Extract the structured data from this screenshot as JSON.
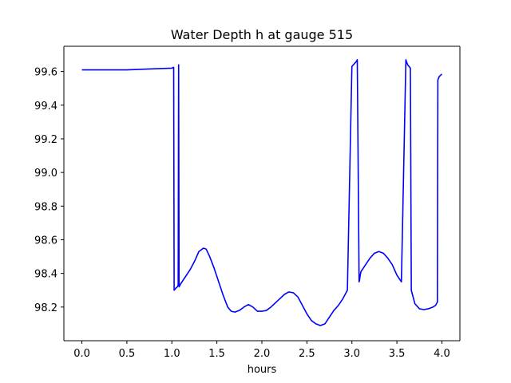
{
  "chart_data": {
    "type": "line",
    "title": "Water Depth h at gauge 515",
    "xlabel": "hours",
    "ylabel": "",
    "xlim": [
      -0.2,
      4.2
    ],
    "ylim": [
      98.0,
      99.75
    ],
    "xticks": [
      0.0,
      0.5,
      1.0,
      1.5,
      2.0,
      2.5,
      3.0,
      3.5,
      4.0
    ],
    "xtick_labels": [
      "0.0",
      "0.5",
      "1.0",
      "1.5",
      "2.0",
      "2.5",
      "3.0",
      "3.5",
      "4.0"
    ],
    "yticks": [
      98.2,
      98.4,
      98.6,
      98.8,
      99.0,
      99.2,
      99.4,
      99.6
    ],
    "ytick_labels": [
      "98.2",
      "98.4",
      "98.6",
      "98.8",
      "99.0",
      "99.2",
      "99.4",
      "99.6"
    ],
    "grid": false,
    "legend": "none",
    "series": [
      {
        "color": "#0000ff",
        "x": [
          0.0,
          0.5,
          0.75,
          1.0,
          1.02,
          1.025,
          1.04,
          1.06,
          1.07,
          1.075,
          1.08,
          1.1,
          1.15,
          1.2,
          1.25,
          1.3,
          1.35,
          1.38,
          1.42,
          1.47,
          1.52,
          1.57,
          1.62,
          1.66,
          1.7,
          1.75,
          1.8,
          1.85,
          1.9,
          1.95,
          2.0,
          2.05,
          2.1,
          2.15,
          2.2,
          2.25,
          2.3,
          2.35,
          2.4,
          2.45,
          2.5,
          2.55,
          2.6,
          2.65,
          2.7,
          2.75,
          2.8,
          2.85,
          2.9,
          2.95,
          3.0,
          3.05,
          3.06,
          3.08,
          3.085,
          3.09,
          3.1,
          3.15,
          3.2,
          3.25,
          3.3,
          3.35,
          3.4,
          3.45,
          3.5,
          3.55,
          3.6,
          3.605,
          3.62,
          3.65,
          3.66,
          3.7,
          3.75,
          3.8,
          3.85,
          3.9,
          3.93,
          3.95,
          3.955,
          3.97,
          4.0
        ],
        "y": [
          99.61,
          99.61,
          99.615,
          99.62,
          99.625,
          98.3,
          98.31,
          98.32,
          98.33,
          99.64,
          98.32,
          98.34,
          98.38,
          98.42,
          98.47,
          98.53,
          98.55,
          98.545,
          98.5,
          98.43,
          98.35,
          98.27,
          98.2,
          98.175,
          98.17,
          98.18,
          98.2,
          98.215,
          98.2,
          98.175,
          98.175,
          98.18,
          98.2,
          98.225,
          98.25,
          98.275,
          98.29,
          98.285,
          98.26,
          98.21,
          98.16,
          98.12,
          98.1,
          98.09,
          98.1,
          98.14,
          98.18,
          98.21,
          98.25,
          98.3,
          99.63,
          99.66,
          99.67,
          98.35,
          98.36,
          98.38,
          98.41,
          98.45,
          98.49,
          98.52,
          98.53,
          98.52,
          98.49,
          98.45,
          98.39,
          98.35,
          99.67,
          99.66,
          99.64,
          99.62,
          98.3,
          98.22,
          98.19,
          98.185,
          98.19,
          98.2,
          98.21,
          98.23,
          99.55,
          99.57,
          99.585
        ]
      }
    ]
  }
}
